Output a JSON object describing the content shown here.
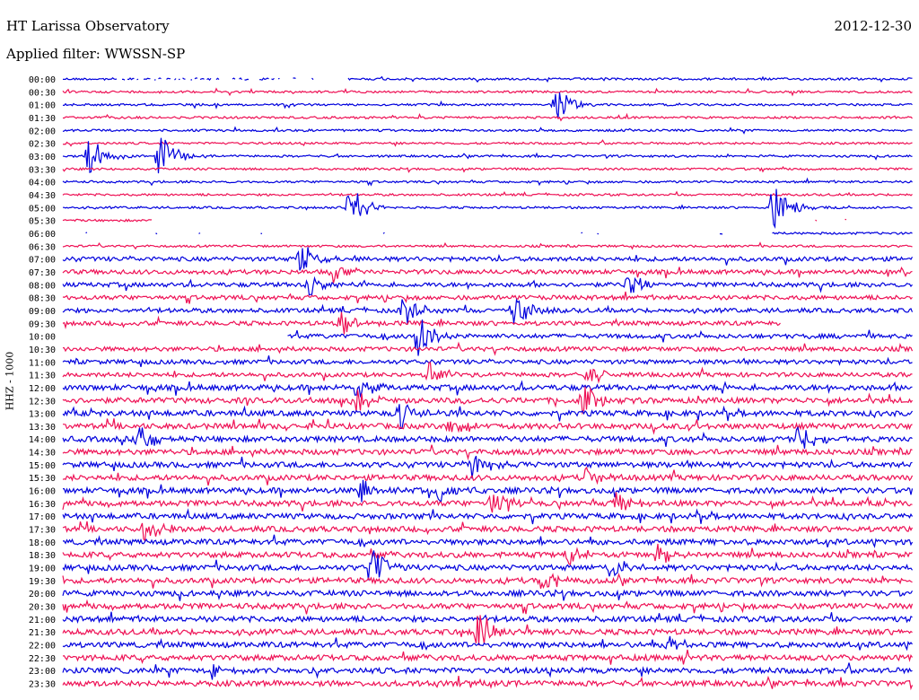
{
  "header": {
    "observatory": "HT Larissa Observatory",
    "date": "2012-12-30",
    "filter_label": "Applied filter: WWSSN-SP"
  },
  "chart_data": {
    "type": "line",
    "title": "HT Larissa Observatory",
    "xlabel": "",
    "ylabel": "HHZ - 1000",
    "colors": {
      "even_trace": "#0000dd",
      "odd_trace": "#ee1155"
    },
    "grid": false,
    "series": [
      {
        "label": "00:00",
        "color": "#0000dd"
      },
      {
        "label": "00:30",
        "color": "#ee1155"
      },
      {
        "label": "01:00",
        "color": "#0000dd"
      },
      {
        "label": "01:30",
        "color": "#ee1155"
      },
      {
        "label": "02:00",
        "color": "#0000dd"
      },
      {
        "label": "02:30",
        "color": "#ee1155"
      },
      {
        "label": "03:00",
        "color": "#0000dd"
      },
      {
        "label": "03:30",
        "color": "#ee1155"
      },
      {
        "label": "04:00",
        "color": "#0000dd"
      },
      {
        "label": "04:30",
        "color": "#ee1155"
      },
      {
        "label": "05:00",
        "color": "#0000dd"
      },
      {
        "label": "05:30",
        "color": "#ee1155"
      },
      {
        "label": "06:00",
        "color": "#0000dd"
      },
      {
        "label": "06:30",
        "color": "#ee1155"
      },
      {
        "label": "07:00",
        "color": "#0000dd"
      },
      {
        "label": "07:30",
        "color": "#ee1155"
      },
      {
        "label": "08:00",
        "color": "#0000dd"
      },
      {
        "label": "08:30",
        "color": "#ee1155"
      },
      {
        "label": "09:00",
        "color": "#0000dd"
      },
      {
        "label": "09:30",
        "color": "#ee1155"
      },
      {
        "label": "10:00",
        "color": "#0000dd"
      },
      {
        "label": "10:30",
        "color": "#ee1155"
      },
      {
        "label": "11:00",
        "color": "#0000dd"
      },
      {
        "label": "11:30",
        "color": "#ee1155"
      },
      {
        "label": "12:00",
        "color": "#0000dd"
      },
      {
        "label": "12:30",
        "color": "#ee1155"
      },
      {
        "label": "13:00",
        "color": "#0000dd"
      },
      {
        "label": "13:30",
        "color": "#ee1155"
      },
      {
        "label": "14:00",
        "color": "#0000dd"
      },
      {
        "label": "14:30",
        "color": "#ee1155"
      },
      {
        "label": "15:00",
        "color": "#0000dd"
      },
      {
        "label": "15:30",
        "color": "#ee1155"
      },
      {
        "label": "16:00",
        "color": "#0000dd"
      },
      {
        "label": "16:30",
        "color": "#ee1155"
      },
      {
        "label": "17:00",
        "color": "#0000dd"
      },
      {
        "label": "17:30",
        "color": "#ee1155"
      },
      {
        "label": "18:00",
        "color": "#0000dd"
      },
      {
        "label": "18:30",
        "color": "#ee1155"
      },
      {
        "label": "19:00",
        "color": "#0000dd"
      },
      {
        "label": "19:30",
        "color": "#ee1155"
      },
      {
        "label": "20:00",
        "color": "#0000dd"
      },
      {
        "label": "20:30",
        "color": "#ee1155"
      },
      {
        "label": "21:00",
        "color": "#0000dd"
      },
      {
        "label": "21:30",
        "color": "#ee1155"
      },
      {
        "label": "22:00",
        "color": "#0000dd"
      },
      {
        "label": "22:30",
        "color": "#ee1155"
      },
      {
        "label": "23:00",
        "color": "#0000dd"
      },
      {
        "label": "23:30",
        "color": "#ee1155"
      }
    ]
  }
}
